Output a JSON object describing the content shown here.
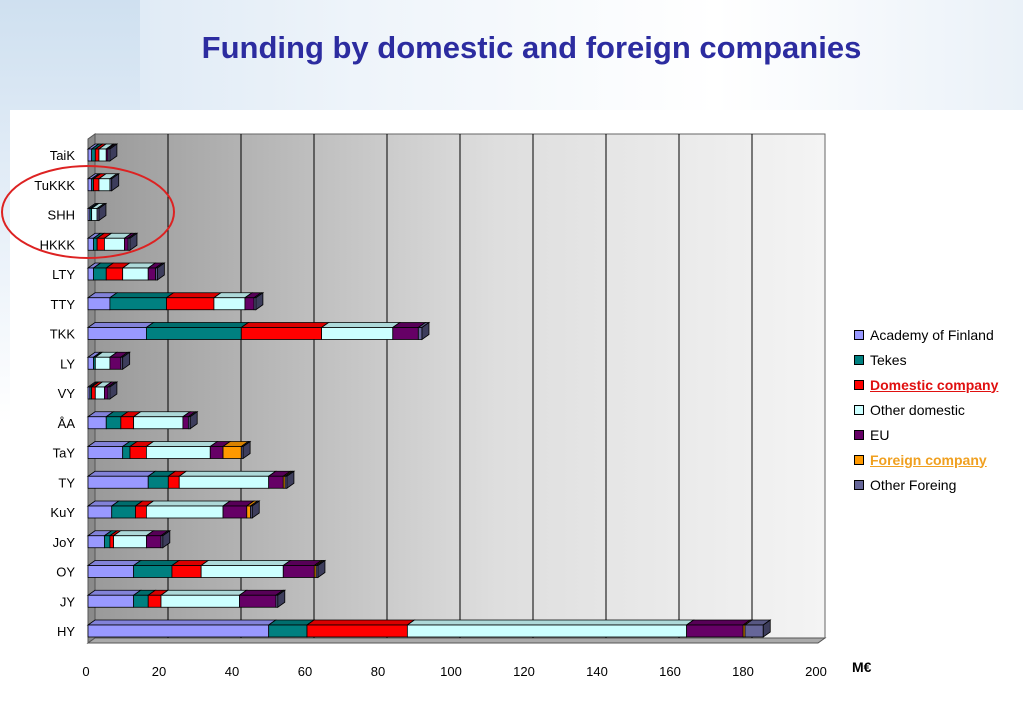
{
  "page_title": "Funding by domestic and foreign companies",
  "chart_data": {
    "type": "bar",
    "orientation": "horizontal",
    "stacked": true,
    "three_d": true,
    "title": "",
    "xlabel": "M€",
    "ylabel": "",
    "xlim": [
      0,
      200
    ],
    "x_ticks": [
      0,
      20,
      40,
      60,
      80,
      100,
      120,
      140,
      160,
      180,
      200
    ],
    "grid": true,
    "legend_position": "right",
    "categories": [
      "TaiK",
      "TuKKK",
      "SHH",
      "HKKK",
      "LTY",
      "TTY",
      "TKK",
      "LY",
      "VY",
      "ÅA",
      "TaY",
      "TY",
      "KuY",
      "JoY",
      "OY",
      "JY",
      "HY"
    ],
    "series": [
      {
        "name": "Academy of Finland",
        "color": "#9999ff",
        "highlight": "",
        "values": [
          1,
          1,
          0.5,
          1.5,
          1.5,
          6,
          16,
          1.5,
          0.5,
          5,
          9.5,
          16.5,
          6.5,
          4.5,
          12.5,
          12.5,
          49.5
        ]
      },
      {
        "name": "Tekes",
        "color": "#008080",
        "highlight": "",
        "values": [
          1,
          0.5,
          0.5,
          1,
          3.5,
          15.5,
          26,
          0.5,
          0.5,
          4,
          2,
          5.5,
          6.5,
          1.5,
          10.5,
          4,
          10.5
        ]
      },
      {
        "name": "Domestic company",
        "color": "#ff0000",
        "highlight": "red",
        "values": [
          1,
          1.5,
          0,
          2,
          4.5,
          13,
          22,
          0,
          1,
          3.5,
          4.5,
          3,
          3,
          1,
          8,
          3.5,
          27.5
        ]
      },
      {
        "name": "Other domestic",
        "color": "#ccffff",
        "highlight": "",
        "values": [
          2,
          3,
          1.5,
          5.5,
          7,
          8.5,
          19.5,
          4,
          2.5,
          13.5,
          17.5,
          24.5,
          21,
          9,
          22.5,
          21.5,
          76.5
        ]
      },
      {
        "name": "EU",
        "color": "#660066",
        "highlight": "",
        "values": [
          0.5,
          0,
          0,
          1,
          2,
          2.5,
          7,
          3,
          1,
          1.5,
          3.5,
          4,
          6.5,
          4,
          8.5,
          10,
          15.5
        ]
      },
      {
        "name": "Foreign company",
        "color": "#ff9900",
        "highlight": "orange",
        "values": [
          0,
          0,
          0,
          0,
          0,
          0,
          0,
          0,
          0,
          0,
          5,
          0.5,
          1,
          0,
          0.5,
          0,
          0.5
        ]
      },
      {
        "name": "Other Foreing",
        "color": "#666699",
        "highlight": "",
        "values": [
          0.5,
          0.5,
          0.5,
          0.5,
          0.5,
          0.5,
          1,
          0.5,
          0.5,
          0.5,
          0.5,
          0.5,
          0.5,
          0.5,
          0.5,
          0.5,
          5
        ]
      }
    ]
  },
  "annotation": {
    "type": "ellipse",
    "color": "#dd2222",
    "covers": [
      "TuKKK",
      "SHH",
      "HKKK"
    ]
  }
}
